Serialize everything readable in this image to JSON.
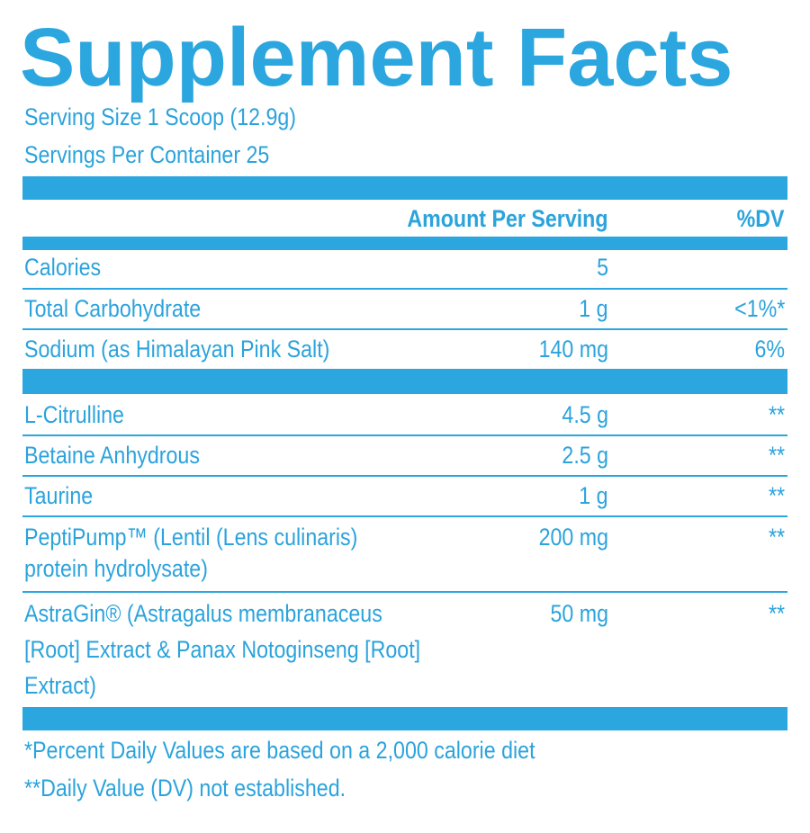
{
  "header": {
    "title": "Supplement Facts",
    "serving_size": "Serving Size 1 Scoop (12.9g)",
    "servings_per_container": "Servings Per Container 25"
  },
  "table": {
    "columns": [
      "Amount Per Serving",
      "%DV"
    ],
    "rows": [
      {
        "name": [
          "Calories"
        ],
        "amount": "5"
      },
      {
        "name": [
          "Total Carbohydrate"
        ],
        "amount": "1 g",
        "dv": "<1%*"
      },
      {
        "name": [
          "Sodium (as Himalayan Pink Salt)"
        ],
        "amount": "140 mg",
        "dv": "6%"
      },
      {
        "name": [
          "L-Citrulline"
        ],
        "amount": "4.5 g",
        "dv": "**"
      },
      {
        "name": [
          "Betaine Anhydrous"
        ],
        "amount": "2.5 g",
        "dv": "**"
      },
      {
        "name": [
          "Taurine"
        ],
        "amount": "1 g",
        "dv": "**"
      },
      {
        "name": [
          "PeptiPump™ (Lentil (Lens culinaris)",
          "protein hydrolysate)"
        ],
        "amount": "200 mg",
        "dv": "**"
      },
      {
        "name": [
          "AstraGin® (Astragalus membranaceus",
          "[Root] Extract & Panax Notoginseng [Root]",
          "Extract)"
        ],
        "amount": "50 mg",
        "dv": "**"
      }
    ]
  },
  "footnotes": [
    "*Percent Daily Values are based on a 2,000 calorie diet",
    "**Daily Value (DV) not established."
  ]
}
